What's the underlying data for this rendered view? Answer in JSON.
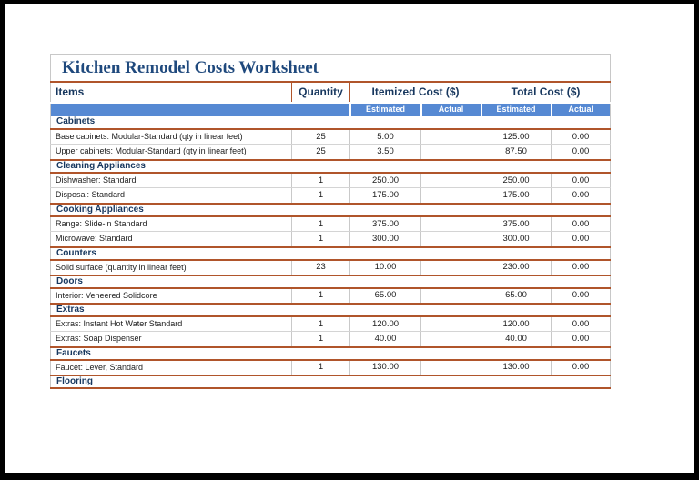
{
  "worksheet": {
    "title": "Kitchen Remodel Costs Worksheet",
    "columns": {
      "items": "Items",
      "quantity": "Quantity",
      "itemized_cost": "Itemized Cost ($)",
      "total_cost": "Total Cost ($)",
      "estimated": "Estimated",
      "actual": "Actual"
    },
    "sections": [
      {
        "name": "Cabinets",
        "rows": [
          {
            "item": "Base cabinets: Modular-Standard (qty in linear feet)",
            "quantity": "25",
            "itemized_estimated": "5.00",
            "itemized_actual": "",
            "total_estimated": "125.00",
            "total_actual": "0.00"
          },
          {
            "item": "Upper cabinets: Modular-Standard (qty in linear feet)",
            "quantity": "25",
            "itemized_estimated": "3.50",
            "itemized_actual": "",
            "total_estimated": "87.50",
            "total_actual": "0.00"
          }
        ]
      },
      {
        "name": "Cleaning Appliances",
        "rows": [
          {
            "item": "Dishwasher: Standard",
            "quantity": "1",
            "itemized_estimated": "250.00",
            "itemized_actual": "",
            "total_estimated": "250.00",
            "total_actual": "0.00"
          },
          {
            "item": "Disposal: Standard",
            "quantity": "1",
            "itemized_estimated": "175.00",
            "itemized_actual": "",
            "total_estimated": "175.00",
            "total_actual": "0.00"
          }
        ]
      },
      {
        "name": "Cooking Appliances",
        "rows": [
          {
            "item": "Range: Slide-in Standard",
            "quantity": "1",
            "itemized_estimated": "375.00",
            "itemized_actual": "",
            "total_estimated": "375.00",
            "total_actual": "0.00"
          },
          {
            "item": "Microwave: Standard",
            "quantity": "1",
            "itemized_estimated": "300.00",
            "itemized_actual": "",
            "total_estimated": "300.00",
            "total_actual": "0.00"
          }
        ]
      },
      {
        "name": "Counters",
        "rows": [
          {
            "item": "Solid surface (quantity in linear feet)",
            "quantity": "23",
            "itemized_estimated": "10.00",
            "itemized_actual": "",
            "total_estimated": "230.00",
            "total_actual": "0.00"
          }
        ]
      },
      {
        "name": "Doors",
        "rows": [
          {
            "item": "Interior: Veneered Solidcore",
            "quantity": "1",
            "itemized_estimated": "65.00",
            "itemized_actual": "",
            "total_estimated": "65.00",
            "total_actual": "0.00"
          }
        ]
      },
      {
        "name": "Extras",
        "rows": [
          {
            "item": "Extras: Instant Hot Water Standard",
            "quantity": "1",
            "itemized_estimated": "120.00",
            "itemized_actual": "",
            "total_estimated": "120.00",
            "total_actual": "0.00"
          },
          {
            "item": "Extras: Soap Dispenser",
            "quantity": "1",
            "itemized_estimated": "40.00",
            "itemized_actual": "",
            "total_estimated": "40.00",
            "total_actual": "0.00"
          }
        ]
      },
      {
        "name": "Faucets",
        "rows": [
          {
            "item": "Faucet: Lever, Standard",
            "quantity": "1",
            "itemized_estimated": "130.00",
            "itemized_actual": "",
            "total_estimated": "130.00",
            "total_actual": "0.00"
          }
        ]
      },
      {
        "name": "Flooring",
        "rows": []
      }
    ]
  },
  "colors": {
    "title_text": "#1F497D",
    "heading_text": "#17375E",
    "subheader_fill": "#5689D3",
    "subheader_text": "#FFFFFF",
    "section_border": "#B0552B",
    "grid_line": "#C9C9C9",
    "table_border": "#C8C8C8",
    "frame": "#000000"
  }
}
